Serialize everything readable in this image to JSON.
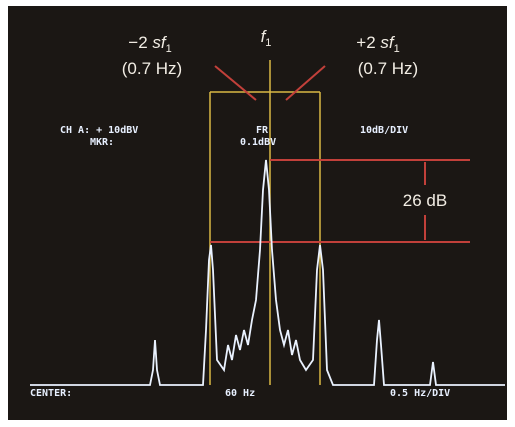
{
  "annotations": {
    "left": {
      "sign": "−2 ",
      "var": "sf",
      "sub": "1",
      "freq": "(0.7 Hz)"
    },
    "center": {
      "var": "f",
      "sub": "1"
    },
    "right": {
      "sign": "+2 ",
      "var": "sf",
      "sub": "1",
      "freq": "(0.7 Hz)"
    },
    "level": "26 dB"
  },
  "screen": {
    "channel": "CH A: + 10dBV",
    "marker_label": "MKR:",
    "freq_flag": "FR",
    "marker_value": "0.1dBV",
    "scale": "10dB/DIV",
    "center_label": "CENTER:",
    "center_value": "60 Hz",
    "span": "0.5 Hz/DIV"
  }
}
